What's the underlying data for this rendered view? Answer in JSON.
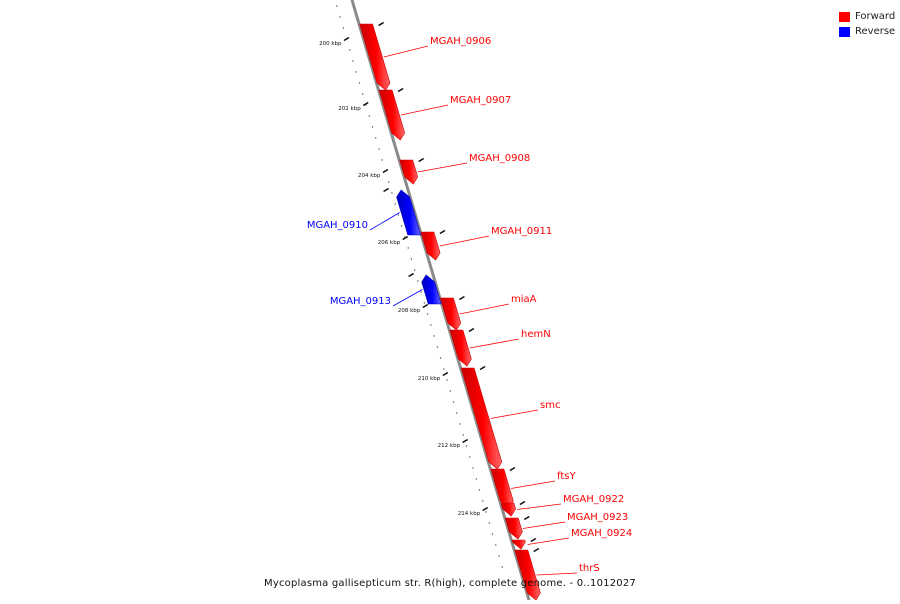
{
  "legend": [
    {
      "label": "Forward",
      "color": "#ff0000"
    },
    {
      "label": "Reverse",
      "color": "#0000ff"
    }
  ],
  "caption": "Mycoplasma gallisepticum str. R(high), complete genome. - 0..1012027",
  "colors": {
    "forward": "#ff0000",
    "reverse": "#0000ff",
    "axis": "#888888"
  },
  "scale": {
    "ticks": [
      "200 kbp",
      "202 kbp",
      "204 kbp",
      "206 kbp",
      "208 kbp",
      "210 kbp",
      "212 kbp",
      "214 kbp"
    ]
  },
  "genes": [
    {
      "name": "MGAH_0906",
      "strand": "forward"
    },
    {
      "name": "MGAH_0907",
      "strand": "forward"
    },
    {
      "name": "MGAH_0908",
      "strand": "forward"
    },
    {
      "name": "MGAH_0910",
      "strand": "reverse"
    },
    {
      "name": "MGAH_0911",
      "strand": "forward"
    },
    {
      "name": "MGAH_0913",
      "strand": "reverse"
    },
    {
      "name": "miaA",
      "strand": "forward"
    },
    {
      "name": "hemN",
      "strand": "forward"
    },
    {
      "name": "smc",
      "strand": "forward"
    },
    {
      "name": "ftsY",
      "strand": "forward"
    },
    {
      "name": "MGAH_0922",
      "strand": "forward"
    },
    {
      "name": "MGAH_0923",
      "strand": "forward"
    },
    {
      "name": "MGAH_0924",
      "strand": "forward"
    },
    {
      "name": "thrS",
      "strand": "forward"
    }
  ]
}
